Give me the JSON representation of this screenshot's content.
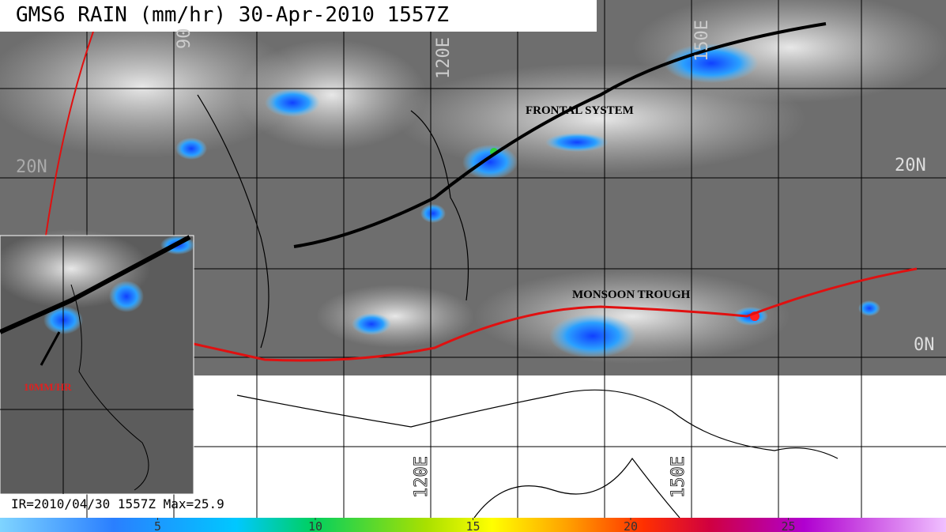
{
  "title": "GMS6 RAIN (mm/hr) 30-Apr-2010 1557Z",
  "annotations": {
    "frontal": "FRONTAL SYSTEM",
    "monsoon": "MONSOON TROUGH",
    "inset_rate": "10MM/HR"
  },
  "grid_labels": {
    "lat_20n_right": "20N",
    "lat_20n_left": "20N",
    "lat_0n": "0N",
    "lon_120e_bottom": "120E",
    "lon_150e_bottom": "150E",
    "lon_150e_top": "150E",
    "lon_120e_top": "120E",
    "lon_90e_top": "90"
  },
  "footer": "IR=2010/04/30 1557Z  Max=25.9",
  "colorbar": {
    "range": [
      0,
      30
    ],
    "ticks": [
      5,
      10,
      15,
      20,
      25
    ]
  }
}
